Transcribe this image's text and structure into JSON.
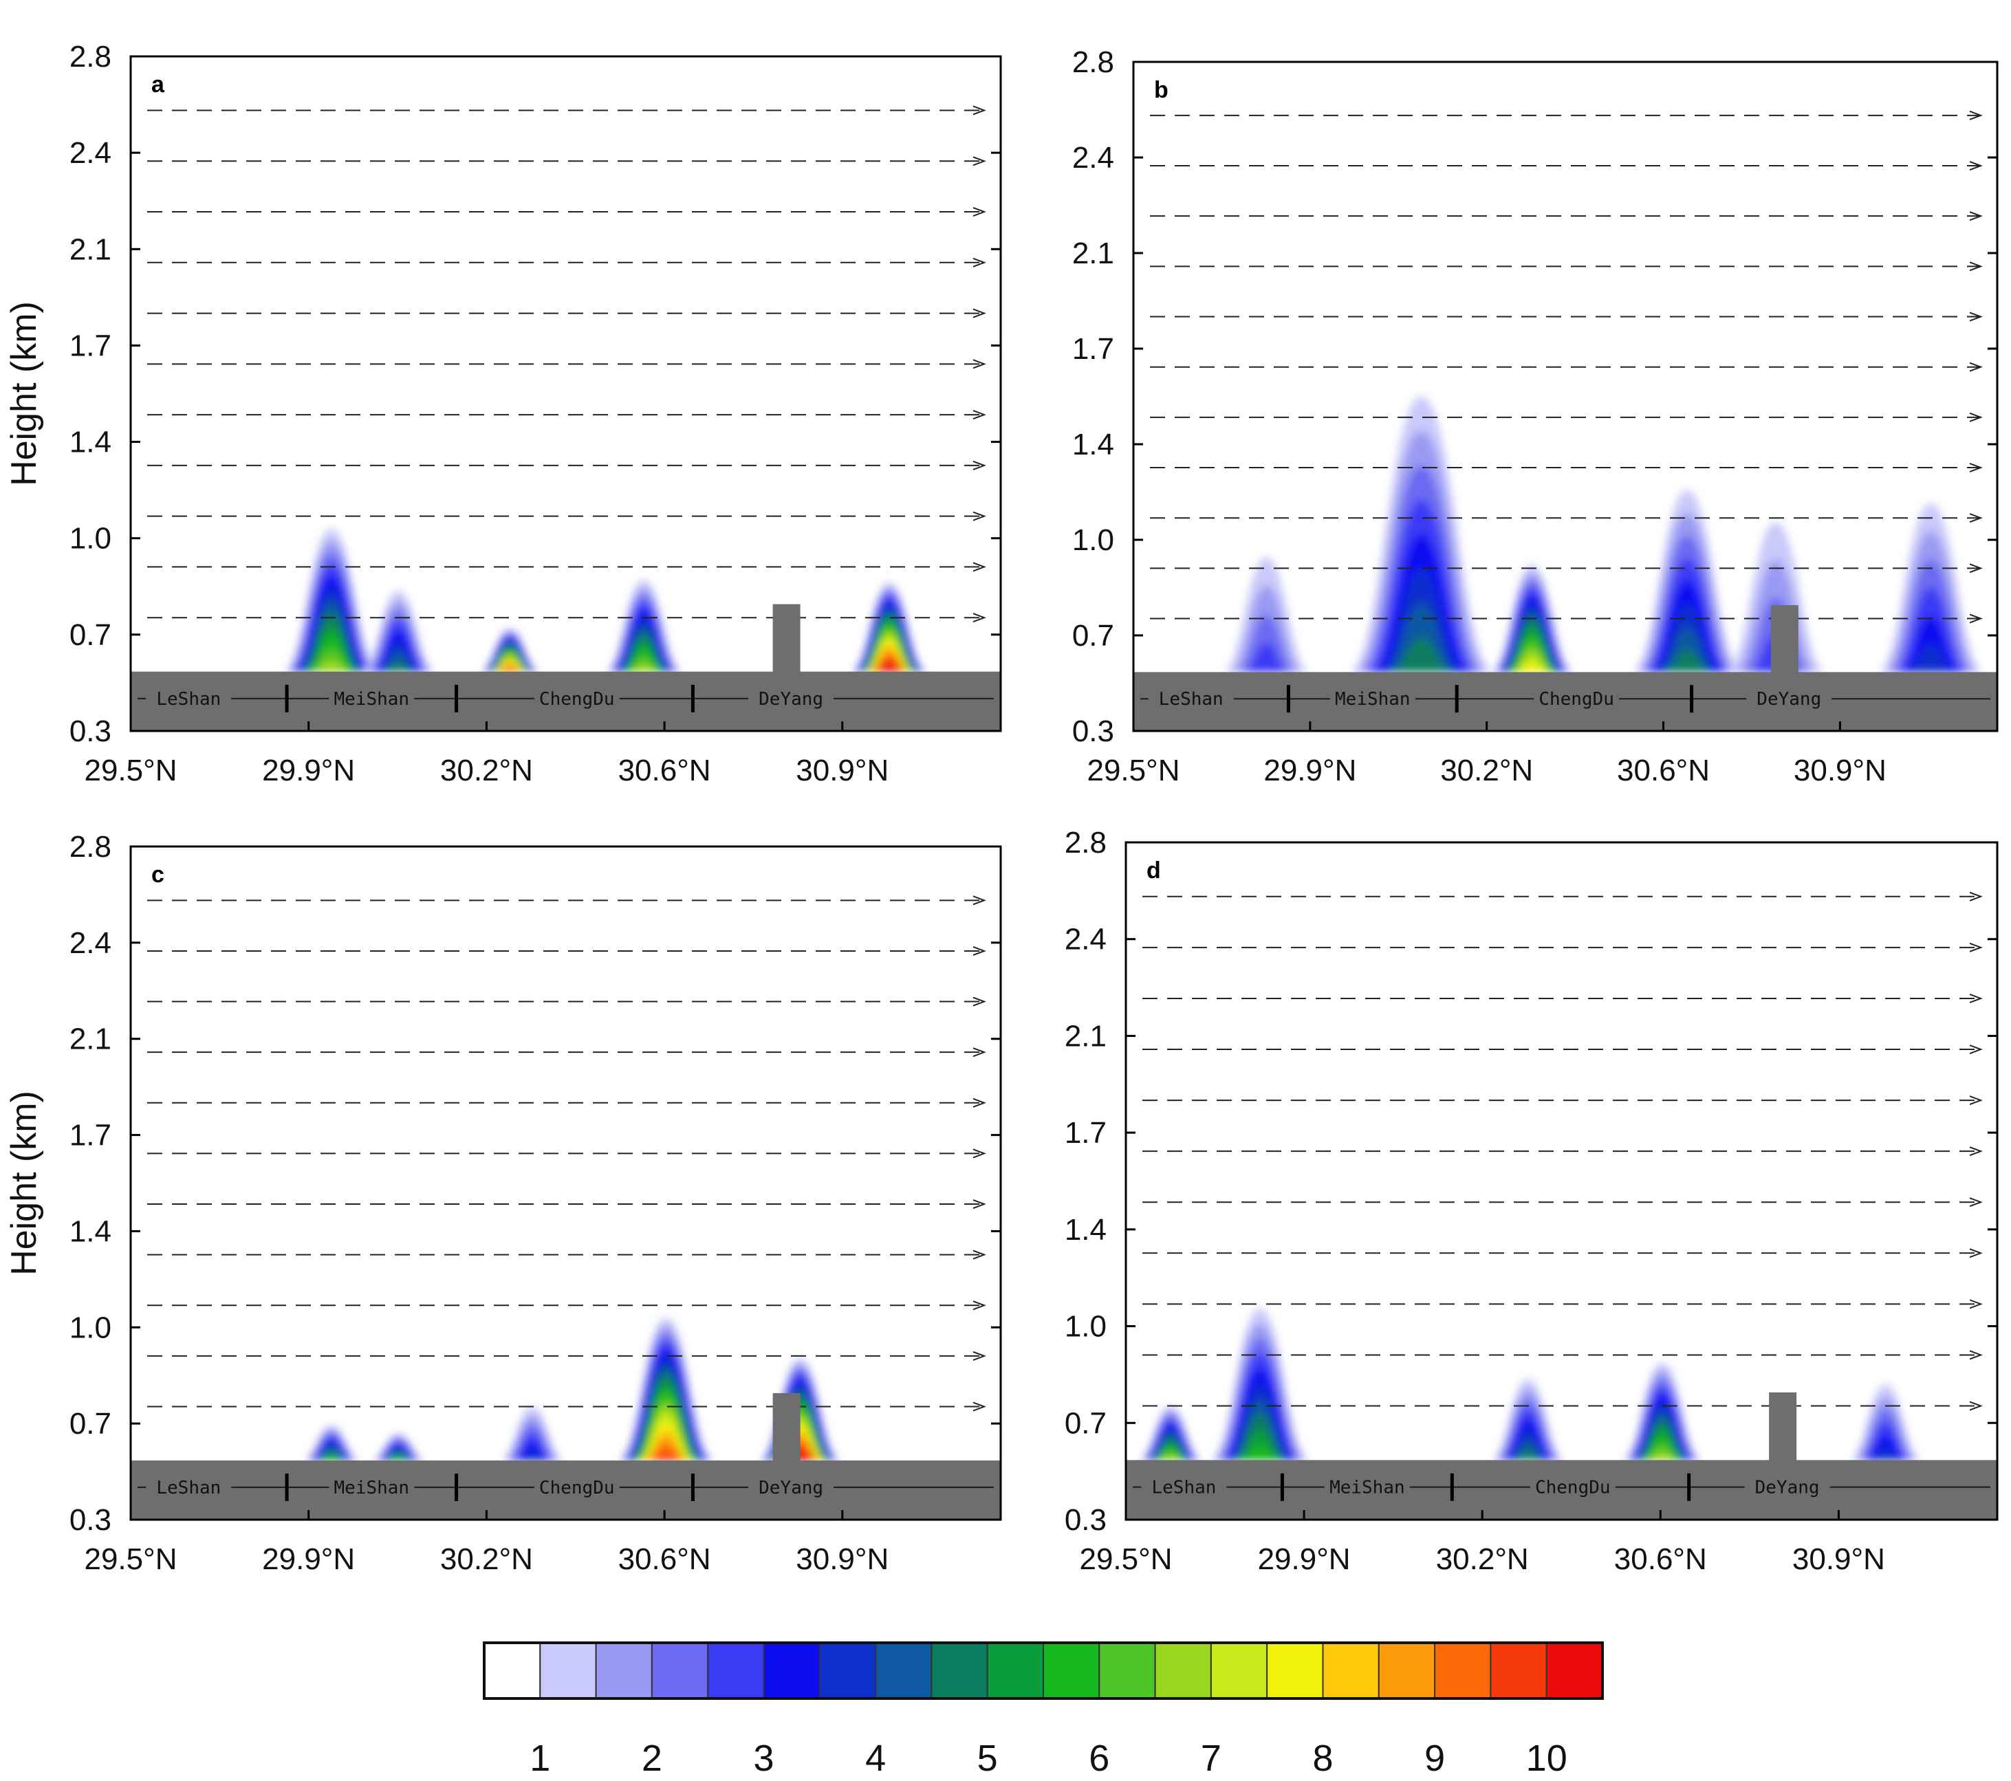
{
  "figure": {
    "y_axis_label": "Height (km)",
    "y_ticks": [
      "0.3",
      "0.7",
      "1.0",
      "1.4",
      "1.7",
      "2.1",
      "2.4",
      "2.8"
    ],
    "x_ticks": [
      "29.5°N",
      "29.9°N",
      "30.2°N",
      "30.6°N",
      "30.9°N"
    ],
    "cities": [
      "LeShan",
      "MeiShan",
      "ChengDu",
      "DeYang"
    ]
  },
  "colorbar": {
    "colors": [
      "#ffffff",
      "#c9c9fb",
      "#9a9af3",
      "#6b6bf3",
      "#3b3bf6",
      "#0d0df2",
      "#0d2fcc",
      "#0f58a2",
      "#0a7d5e",
      "#0a9c3c",
      "#17b81f",
      "#4fc52c",
      "#98d71d",
      "#c9eb1b",
      "#f2f20a",
      "#fdc90a",
      "#fd9b0a",
      "#fd6a0a",
      "#f63a0a",
      "#ec0a0a"
    ],
    "labels": [
      "1",
      "2",
      "3",
      "4",
      "5",
      "6",
      "7",
      "8",
      "9",
      "10"
    ]
  },
  "chart_data": [
    {
      "type": "contour",
      "panel_label": "a",
      "yticks": [
        "0.3",
        "0.7",
        "1.0",
        "1.4",
        "1.7",
        "2.1",
        "2.4",
        "2.8"
      ],
      "xticks": [
        "29.5°N",
        "29.9°N",
        "30.2°N",
        "30.6°N",
        "30.9°N"
      ],
      "city_labels": [
        "LeShan",
        "MeiShan",
        "ChengDu",
        "DeYang"
      ],
      "features": [
        {
          "lat": 29.95,
          "top_km": 1.05,
          "max_level": 6
        },
        {
          "lat": 30.1,
          "top_km": 0.82,
          "max_level": 4
        },
        {
          "lat": 30.35,
          "top_km": 0.68,
          "max_level": 9
        },
        {
          "lat": 30.65,
          "top_km": 0.86,
          "max_level": 6
        },
        {
          "lat": 31.2,
          "top_km": 0.85,
          "max_level": 10
        }
      ]
    },
    {
      "type": "contour",
      "panel_label": "b",
      "yticks": [
        "0.3",
        "0.7",
        "1.0",
        "1.4",
        "1.7",
        "2.1",
        "2.4",
        "2.8"
      ],
      "xticks": [
        "29.5°N",
        "29.9°N",
        "30.2°N",
        "30.6°N",
        "30.9°N"
      ],
      "city_labels": [
        "LeShan",
        "MeiShan",
        "ChengDu",
        "DeYang"
      ],
      "features": [
        {
          "lat": 29.8,
          "top_km": 0.95,
          "max_level": 2
        },
        {
          "lat": 30.15,
          "top_km": 1.55,
          "max_level": 4
        },
        {
          "lat": 30.4,
          "top_km": 0.92,
          "max_level": 7
        },
        {
          "lat": 30.75,
          "top_km": 1.2,
          "max_level": 4
        },
        {
          "lat": 30.95,
          "top_km": 1.08,
          "max_level": 2
        },
        {
          "lat": 31.3,
          "top_km": 1.15,
          "max_level": 3
        }
      ]
    },
    {
      "type": "contour",
      "panel_label": "c",
      "yticks": [
        "0.3",
        "0.7",
        "1.0",
        "1.4",
        "1.7",
        "2.1",
        "2.4",
        "2.8"
      ],
      "xticks": [
        "29.5°N",
        "29.9°N",
        "30.2°N",
        "30.6°N",
        "30.9°N"
      ],
      "city_labels": [
        "LeShan",
        "MeiShan",
        "ChengDu",
        "DeYang"
      ],
      "features": [
        {
          "lat": 29.95,
          "top_km": 0.65,
          "max_level": 5
        },
        {
          "lat": 30.1,
          "top_km": 0.62,
          "max_level": 5
        },
        {
          "lat": 30.4,
          "top_km": 0.72,
          "max_level": 3
        },
        {
          "lat": 30.7,
          "top_km": 1.05,
          "max_level": 9
        },
        {
          "lat": 31.0,
          "top_km": 0.9,
          "max_level": 10
        }
      ]
    },
    {
      "type": "contour",
      "panel_label": "d",
      "yticks": [
        "0.3",
        "0.7",
        "1.0",
        "1.4",
        "1.7",
        "2.1",
        "2.4",
        "2.8"
      ],
      "xticks": [
        "29.5°N",
        "29.9°N",
        "30.2°N",
        "30.6°N",
        "30.9°N"
      ],
      "city_labels": [
        "LeShan",
        "MeiShan",
        "ChengDu",
        "DeYang"
      ],
      "features": [
        {
          "lat": 29.6,
          "top_km": 0.72,
          "max_level": 6
        },
        {
          "lat": 29.8,
          "top_km": 1.08,
          "max_level": 5
        },
        {
          "lat": 30.4,
          "top_km": 0.82,
          "max_level": 4
        },
        {
          "lat": 30.7,
          "top_km": 0.88,
          "max_level": 6
        },
        {
          "lat": 31.2,
          "top_km": 0.8,
          "max_level": 3
        }
      ]
    }
  ]
}
